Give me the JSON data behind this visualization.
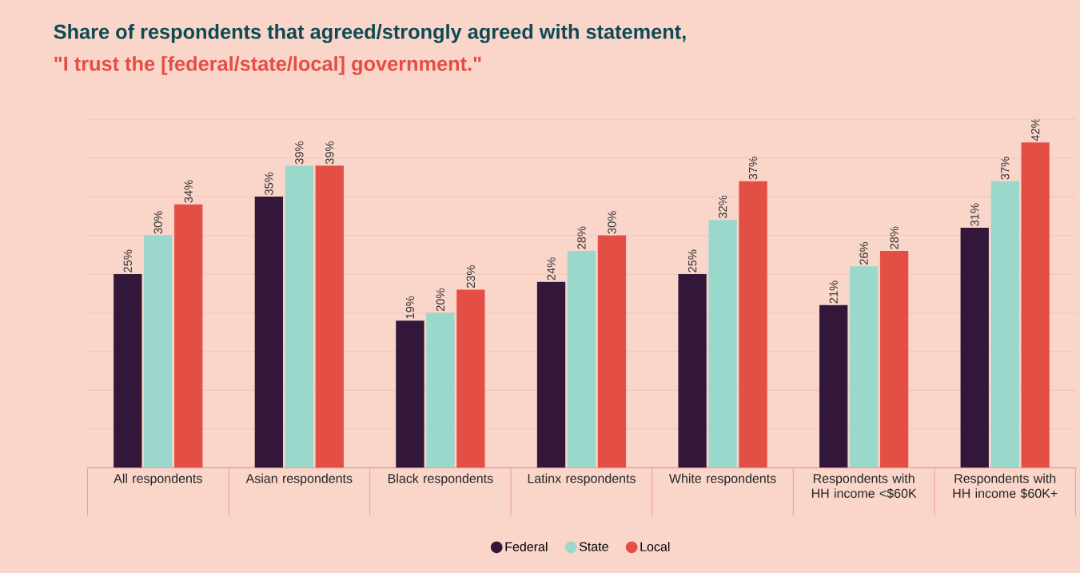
{
  "chart_data": {
    "type": "bar",
    "title": "Share of respondents that agreed/strongly agreed with statement,",
    "subtitle": "\"I trust the [federal/state/local] government.\"",
    "categories": [
      "All respondents",
      "Asian respondents",
      "Black respondents",
      "Latinx respondents",
      "White respondents",
      "Respondents with HH income <$60K",
      "Respondents with HH income $60K+"
    ],
    "series": [
      {
        "name": "Federal",
        "color": "#33173a",
        "values": [
          25,
          35,
          19,
          24,
          25,
          21,
          31
        ],
        "value_labels": [
          "25%",
          "35%",
          "19%",
          "24%",
          "25%",
          "21%",
          "31%"
        ]
      },
      {
        "name": "State",
        "color": "#9ad8cc",
        "values": [
          30,
          39,
          20,
          28,
          32,
          26,
          37
        ],
        "value_labels": [
          "30%",
          "39%",
          "20%",
          "28%",
          "32%",
          "26%",
          "37%"
        ]
      },
      {
        "name": "Local",
        "color": "#e34e45",
        "values": [
          34,
          39,
          23,
          30,
          37,
          28,
          42
        ],
        "value_labels": [
          "34%",
          "39%",
          "23%",
          "30%",
          "37%",
          "28%",
          "42%"
        ]
      }
    ],
    "ylim": [
      0,
      45
    ],
    "yticks": [
      {
        "value": 5,
        "label": null
      },
      {
        "value": 10,
        "label": null
      },
      {
        "value": 15,
        "label": null
      },
      {
        "value": 20,
        "label": null
      },
      {
        "value": 25,
        "label": null
      },
      {
        "value": 30,
        "label": null
      },
      {
        "value": 35,
        "label": null
      },
      {
        "value": 40,
        "label": null
      },
      {
        "value": 45,
        "label": null
      }
    ],
    "grid": "y",
    "legend": "bottom",
    "tick_labels": "x"
  }
}
